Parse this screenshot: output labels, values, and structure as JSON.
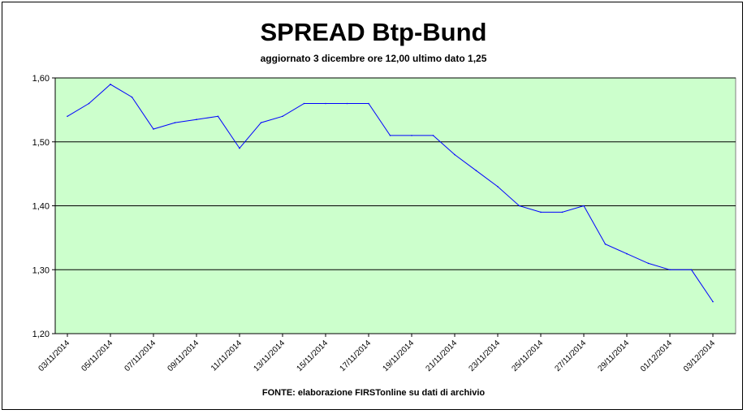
{
  "chart_data": {
    "type": "line",
    "title": "SPREAD Btp-Bund",
    "subtitle": "aggiornato 3 dicembre ore 12,00  ultimo dato  1,25",
    "source": "FONTE: elaborazione FIRSTonline su dati di archivio",
    "xlabel": "",
    "ylabel": "",
    "ylim": [
      1.2,
      1.6
    ],
    "y_ticks": [
      "1,20",
      "1,30",
      "1,40",
      "1,50",
      "1,60"
    ],
    "grid": true,
    "plot_background": "#ccffcc",
    "line_color": "#0000ff",
    "x_tick_labels": [
      "03/11/2014",
      "05/11/2014",
      "07/11/2014",
      "09/11/2014",
      "11/11/2014",
      "13/11/2014",
      "15/11/2014",
      "17/11/2014",
      "19/11/2014",
      "21/11/2014",
      "23/11/2014",
      "25/11/2014",
      "27/11/2014",
      "29/11/2014",
      "01/12/2014",
      "03/12/2014"
    ],
    "x_tick_index": [
      0,
      2,
      4,
      6,
      8,
      10,
      12,
      14,
      16,
      18,
      20,
      22,
      24,
      26,
      28,
      30
    ],
    "series": [
      {
        "values": [
          1.54,
          1.56,
          1.59,
          1.57,
          1.52,
          1.53,
          1.535,
          1.54,
          1.49,
          1.53,
          1.54,
          1.56,
          1.56,
          1.56,
          1.56,
          1.51,
          1.51,
          1.51,
          1.48,
          1.455,
          1.43,
          1.4,
          1.39,
          1.39,
          1.4,
          1.34,
          1.325,
          1.31,
          1.3,
          1.3,
          1.25
        ]
      }
    ]
  }
}
